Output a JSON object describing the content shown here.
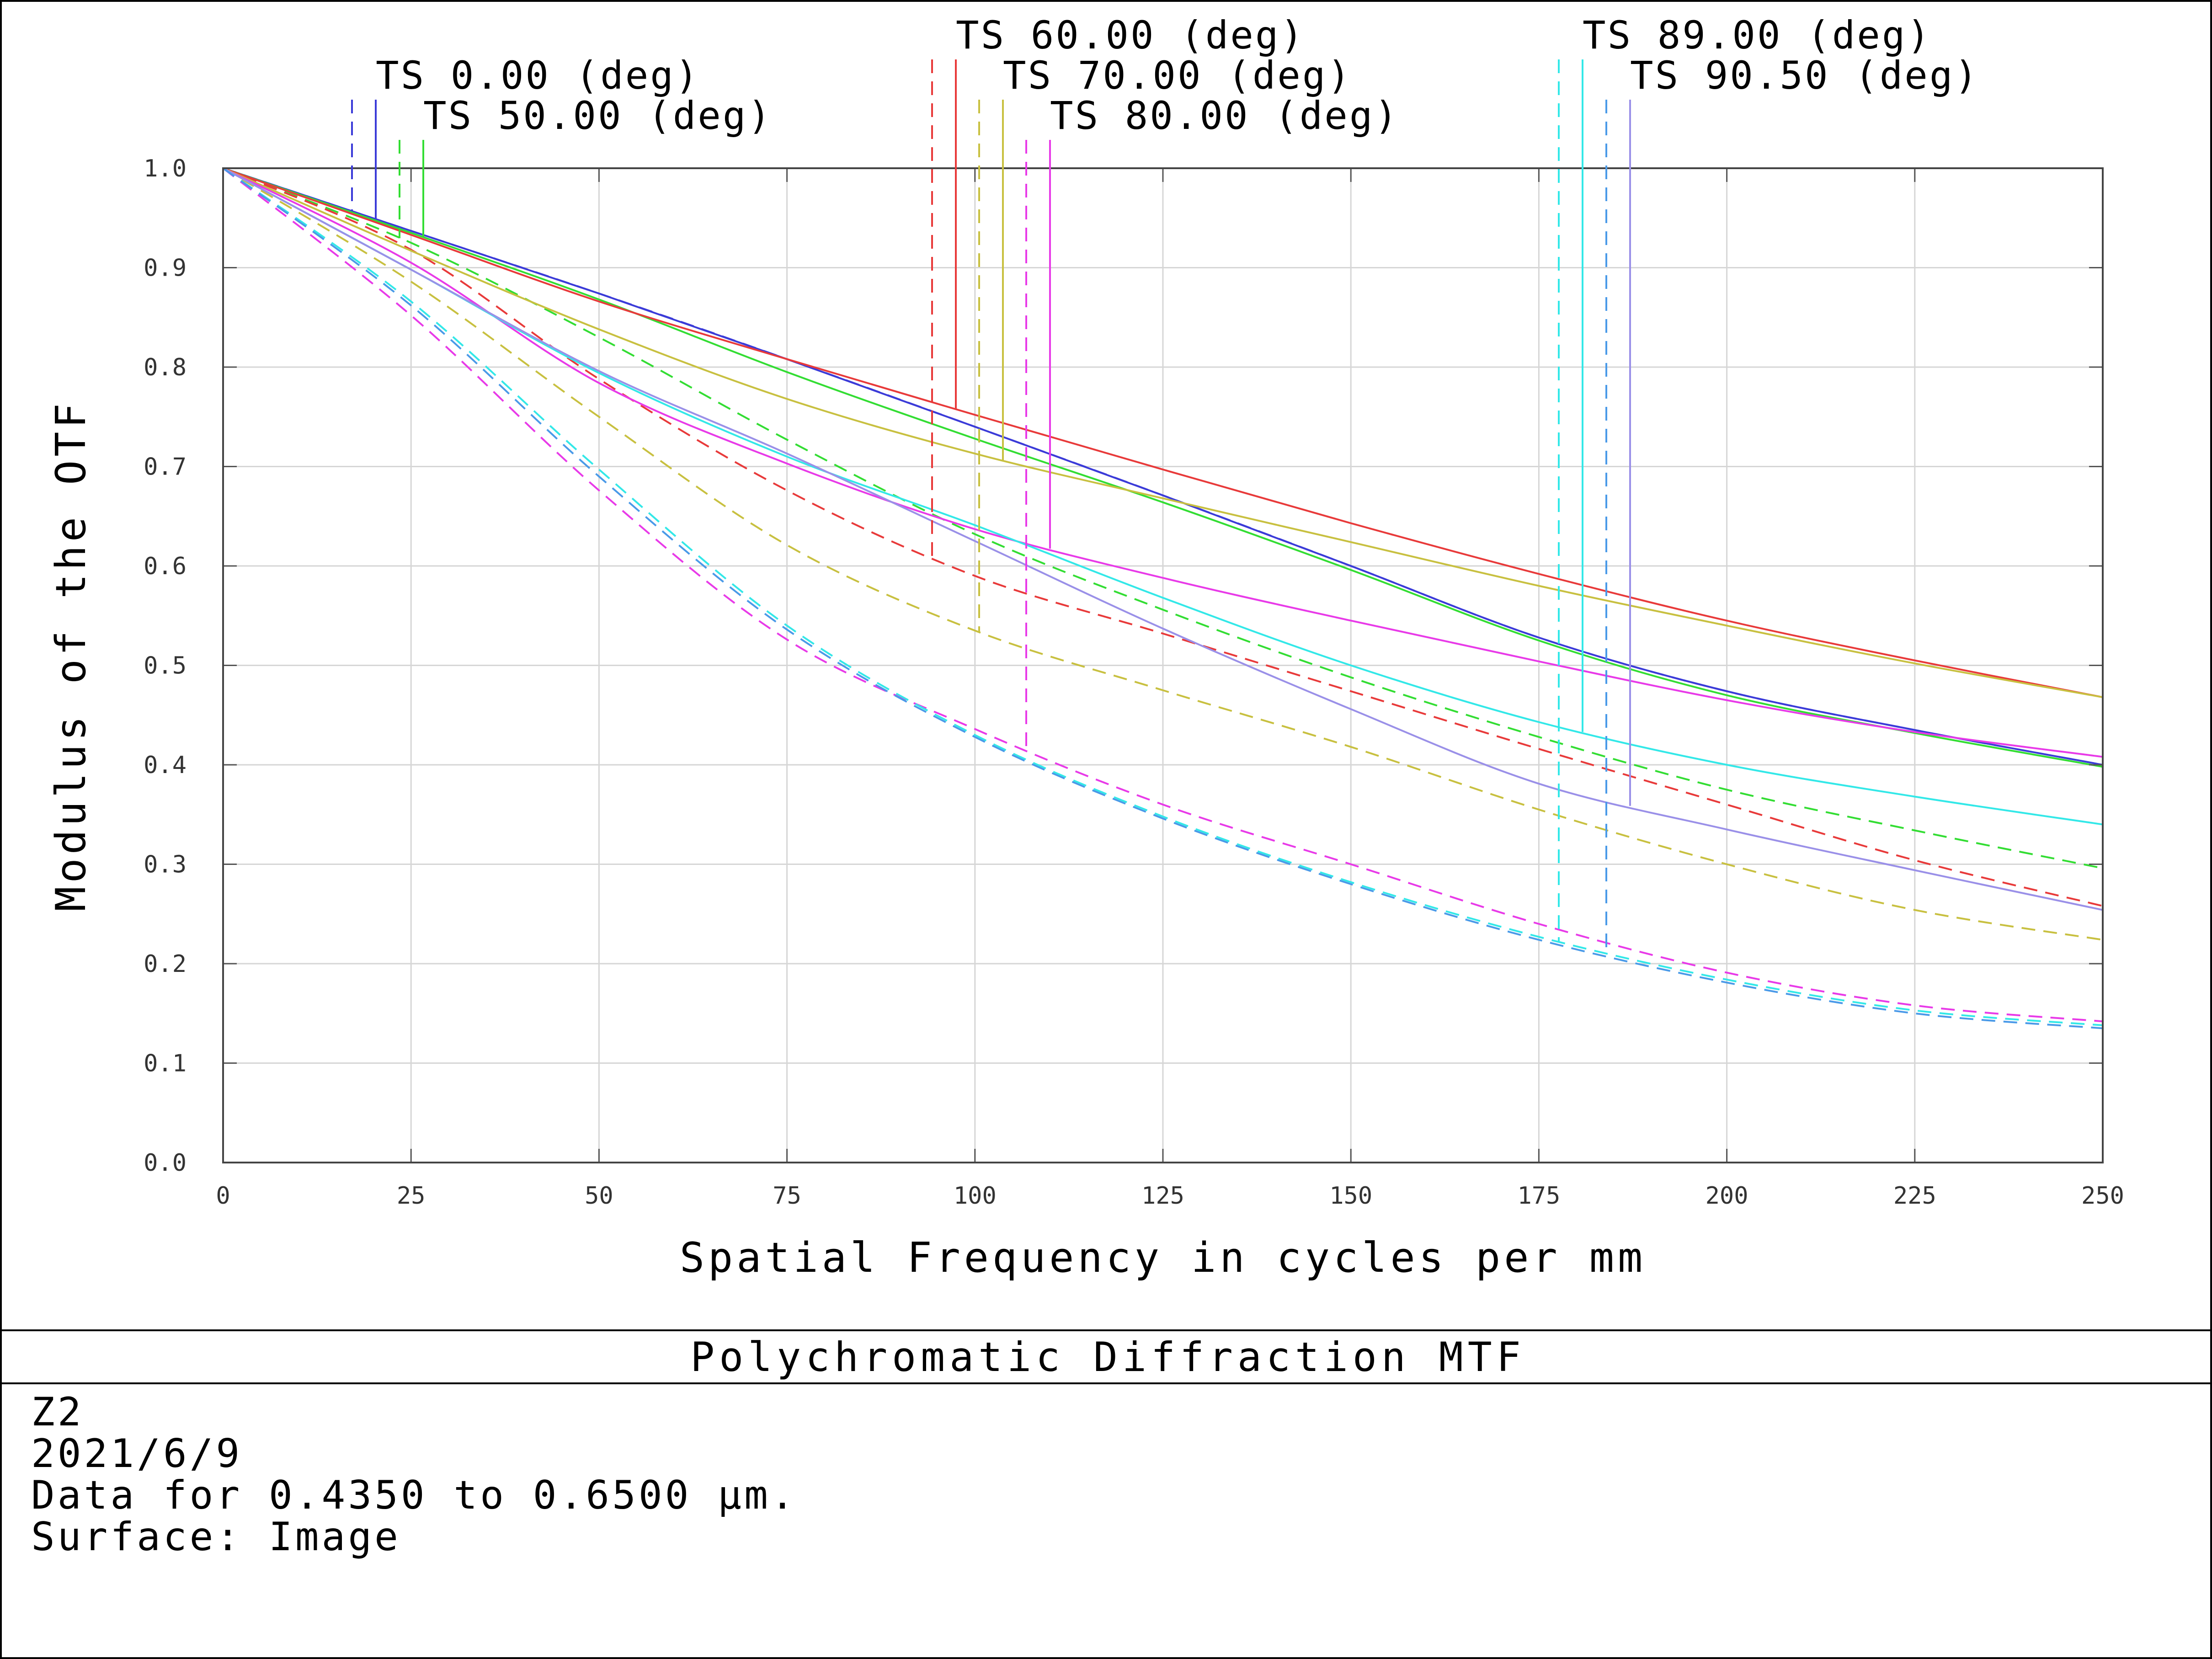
{
  "chart_data": {
    "type": "line",
    "title": "Polychromatic Diffraction MTF",
    "xlabel": "Spatial Frequency in cycles per mm",
    "ylabel": "Modulus of the OTF",
    "xlim": [
      0,
      250
    ],
    "ylim": [
      0,
      1.0
    ],
    "x_ticks": [
      "0",
      "25",
      "50",
      "75",
      "100",
      "125",
      "150",
      "175",
      "200",
      "225",
      "250"
    ],
    "y_ticks": [
      "0.0",
      "0.1",
      "0.2",
      "0.3",
      "0.4",
      "0.5",
      "0.6",
      "0.7",
      "0.8",
      "0.9",
      "1.0"
    ],
    "grid": true,
    "legend": [
      {
        "label": "TS 0.00 (deg)",
        "color": "#3b3bd8",
        "row": 1
      },
      {
        "label": "TS 50.00 (deg)",
        "color": "#33dd33",
        "row": 2
      },
      {
        "label": "TS 60.00 (deg)",
        "color": "#e83a3a",
        "row": 0
      },
      {
        "label": "TS 70.00 (deg)",
        "color": "#c8c040",
        "row": 1
      },
      {
        "label": "TS 80.00 (deg)",
        "color": "#e83ae8",
        "row": 2
      },
      {
        "label": "TS 89.00 (deg)",
        "color": "#33e8e8",
        "row": 0
      },
      {
        "label": "TS 90.50 (deg)",
        "color": "#9a90e8",
        "row": 1
      }
    ],
    "x": [
      0,
      25,
      50,
      75,
      100,
      125,
      150,
      175,
      200,
      225,
      250
    ],
    "series": [
      {
        "field": "TS 0.00 (deg)",
        "kind": "tangential",
        "color": "#3b3bd8",
        "dash": false,
        "values": [
          1.0,
          0.937,
          0.874,
          0.808,
          0.74,
          0.671,
          0.6,
          0.528,
          0.474,
          0.435,
          0.4
        ]
      },
      {
        "field": "TS 0.00 (deg)",
        "kind": "sagittal",
        "color": "#3b3bd8",
        "dash": true,
        "values": [
          1.0,
          0.937,
          0.874,
          0.808,
          0.74,
          0.671,
          0.6,
          0.528,
          0.474,
          0.435,
          0.4
        ]
      },
      {
        "field": "TS 50.00 (deg)",
        "kind": "tangential",
        "color": "#33dd33",
        "dash": false,
        "values": [
          1.0,
          0.935,
          0.868,
          0.795,
          0.728,
          0.664,
          0.596,
          0.525,
          0.47,
          0.432,
          0.398
        ]
      },
      {
        "field": "TS 50.00 (deg)",
        "kind": "sagittal",
        "color": "#33dd33",
        "dash": true,
        "values": [
          1.0,
          0.925,
          0.83,
          0.727,
          0.632,
          0.556,
          0.488,
          0.428,
          0.375,
          0.334,
          0.296
        ]
      },
      {
        "field": "TS 60.00 (deg)",
        "kind": "tangential",
        "color": "#e83a3a",
        "dash": false,
        "values": [
          1.0,
          0.933,
          0.866,
          0.808,
          0.752,
          0.697,
          0.643,
          0.592,
          0.545,
          0.505,
          0.468
        ]
      },
      {
        "field": "TS 60.00 (deg)",
        "kind": "sagittal",
        "color": "#e83a3a",
        "dash": true,
        "values": [
          1.0,
          0.918,
          0.788,
          0.676,
          0.59,
          0.532,
          0.474,
          0.416,
          0.36,
          0.304,
          0.258
        ]
      },
      {
        "field": "TS 70.00 (deg)",
        "kind": "tangential",
        "color": "#c8c040",
        "dash": false,
        "values": [
          1.0,
          0.917,
          0.838,
          0.768,
          0.713,
          0.668,
          0.624,
          0.58,
          0.54,
          0.502,
          0.468
        ]
      },
      {
        "field": "TS 70.00 (deg)",
        "kind": "sagittal",
        "color": "#c8c040",
        "dash": true,
        "values": [
          1.0,
          0.886,
          0.75,
          0.621,
          0.535,
          0.475,
          0.418,
          0.355,
          0.3,
          0.254,
          0.224
        ]
      },
      {
        "field": "TS 80.00 (deg)",
        "kind": "tangential",
        "color": "#e83ae8",
        "dash": false,
        "values": [
          1.0,
          0.905,
          0.784,
          0.703,
          0.637,
          0.588,
          0.545,
          0.504,
          0.465,
          0.433,
          0.408
        ]
      },
      {
        "field": "TS 80.00 (deg)",
        "kind": "sagittal",
        "color": "#e83ae8",
        "dash": true,
        "values": [
          1.0,
          0.852,
          0.676,
          0.526,
          0.436,
          0.36,
          0.3,
          0.24,
          0.191,
          0.158,
          0.142
        ]
      },
      {
        "field": "TS 89.00 (deg)",
        "kind": "tangential",
        "color": "#33e8e8",
        "dash": false,
        "values": [
          1.0,
          0.898,
          0.794,
          0.71,
          0.641,
          0.568,
          0.5,
          0.443,
          0.4,
          0.368,
          0.34
        ]
      },
      {
        "field": "TS 89.00 (deg)",
        "kind": "sagittal",
        "color": "#33e8e8",
        "dash": true,
        "values": [
          1.0,
          0.866,
          0.697,
          0.54,
          0.43,
          0.348,
          0.282,
          0.227,
          0.184,
          0.153,
          0.138
        ]
      },
      {
        "field": "TS 90.50 (deg)",
        "kind": "tangential",
        "color": "#9a90e8",
        "dash": false,
        "values": [
          1.0,
          0.898,
          0.796,
          0.713,
          0.625,
          0.537,
          0.456,
          0.381,
          0.335,
          0.294,
          0.254
        ]
      },
      {
        "field": "TS 90.50 (deg)",
        "kind": "sagittal",
        "color": "#4a9ae8",
        "dash": true,
        "values": [
          1.0,
          0.862,
          0.69,
          0.536,
          0.428,
          0.346,
          0.28,
          0.224,
          0.181,
          0.15,
          0.135
        ]
      }
    ]
  },
  "info": {
    "line1": "Z2",
    "line2": "2021/6/9",
    "line3": "Data for 0.4350 to 0.6500 µm.",
    "line4": "Surface: Image"
  }
}
